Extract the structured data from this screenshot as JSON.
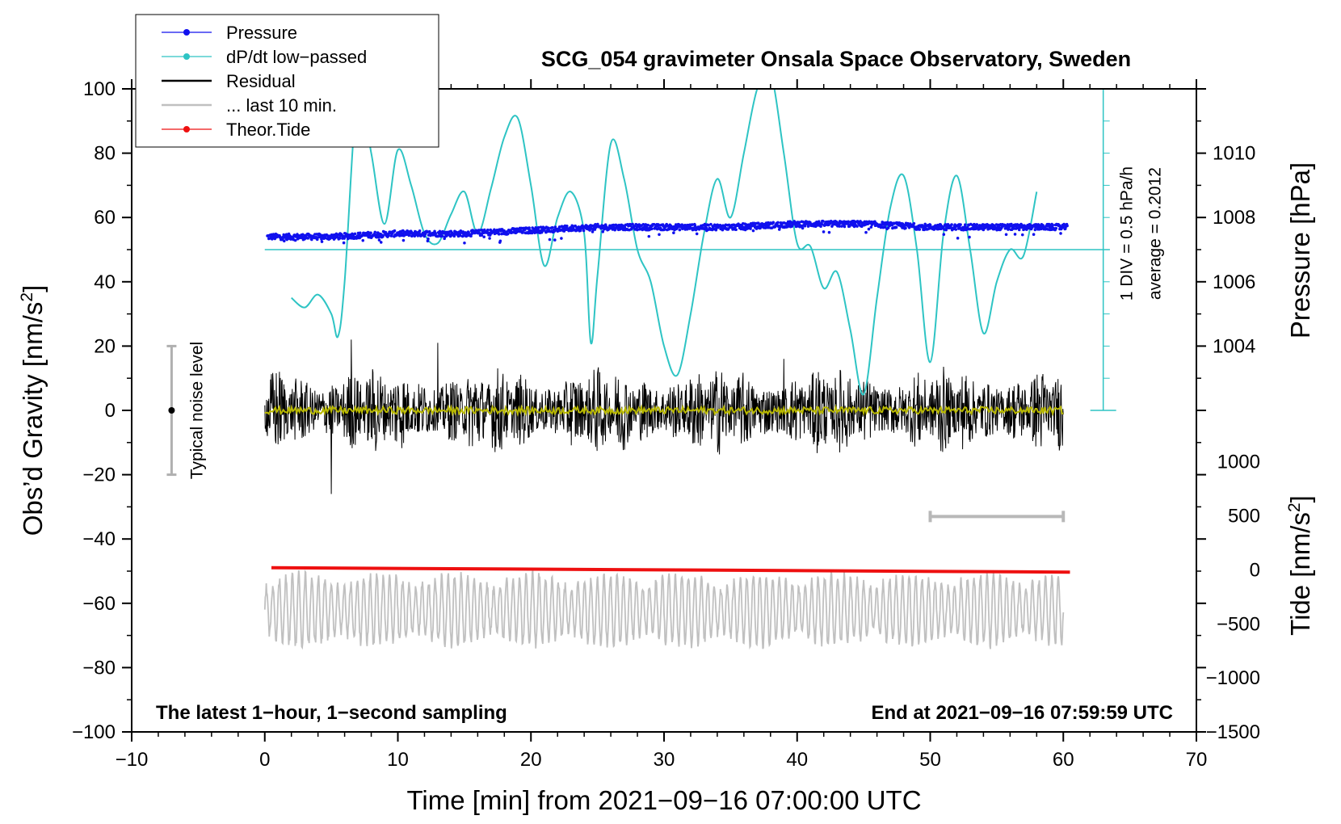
{
  "chart_data": {
    "type": "line",
    "title": "SCG_054 gravimeter Onsala Space Observatory, Sweden",
    "xlabel": "Time [min] from 2021−09−16 07:00:00 UTC",
    "ylabel_left_text": "Obs’d Gravity [nm/s",
    "ylabel_right_top": "Pressure [hPa]",
    "ylabel_right_bottom_text": "Tide [nm/s",
    "unit_exponent": "2",
    "xlim": [
      -10,
      70
    ],
    "ylim": [
      -100,
      100
    ],
    "x_ticks": [
      -10,
      0,
      10,
      20,
      30,
      40,
      50,
      60,
      70
    ],
    "x_tick_labels": [
      "−10",
      "0",
      "10",
      "20",
      "30",
      "40",
      "50",
      "60",
      "70"
    ],
    "y_ticks": [
      -100,
      -80,
      -60,
      -40,
      -20,
      0,
      20,
      40,
      60,
      80,
      100
    ],
    "y_tick_labels": [
      "−100",
      "−80",
      "−60",
      "−40",
      "−20",
      "0",
      "20",
      "40",
      "60",
      "80",
      "100"
    ],
    "pressure_axis": {
      "ticks": [
        1004,
        1006,
        1008,
        1010
      ],
      "tick_labels": [
        "1004",
        "1006",
        "1008",
        "1010"
      ],
      "map_gravity": {
        "value_a": 1004,
        "gravity_a": 20,
        "value_b": 1010,
        "gravity_b": 80
      }
    },
    "tide_axis": {
      "ticks": [
        -1500,
        -1000,
        -500,
        0,
        500,
        1000
      ],
      "tick_labels": [
        "−1500",
        "−1000",
        "−500",
        "0",
        "500",
        "1000"
      ],
      "map_gravity": {
        "value_a": -1500,
        "gravity_a": -100,
        "value_b": 1000,
        "gravity_b": -16
      }
    },
    "legend": {
      "position": "top-left",
      "entries": [
        {
          "name": "Pressure",
          "color": "#1010ee",
          "marker": true
        },
        {
          "name": "dP/dt low−passed",
          "color": "#2ec4c4",
          "marker": true
        },
        {
          "name": "Residual",
          "color": "#000000",
          "marker": false
        },
        {
          "name": "... last 10 min.",
          "color": "#c0c0c0",
          "marker": false
        },
        {
          "name": "Theor.Tide",
          "color": "#ee1010",
          "marker": true
        }
      ]
    },
    "series": [
      {
        "name": "Pressure",
        "color": "#1010ee",
        "units": "hPa",
        "x": [
          0,
          5,
          10,
          15,
          20,
          25,
          30,
          35,
          40,
          45,
          50,
          55,
          60
        ],
        "values": [
          1007.4,
          1007.4,
          1007.5,
          1007.5,
          1007.6,
          1007.7,
          1007.7,
          1007.7,
          1007.8,
          1007.8,
          1007.7,
          1007.7,
          1007.7
        ]
      },
      {
        "name": "dP/dt low−passed",
        "color": "#2ec4c4",
        "units": "gravity-axis",
        "baseline": 50,
        "x": [
          2,
          3,
          4,
          5,
          5.5,
          6,
          7,
          8,
          9,
          10,
          11,
          12,
          13,
          14,
          15,
          16,
          17,
          18,
          19,
          20,
          21,
          22,
          23,
          24,
          24.5,
          25,
          26,
          27,
          28,
          29,
          30,
          31,
          32,
          33,
          34,
          35,
          36,
          37,
          38,
          39,
          40,
          41,
          42,
          43,
          44,
          45,
          46,
          47,
          48,
          49,
          50,
          51,
          52,
          53,
          54,
          55,
          56,
          57,
          58
        ],
        "values": [
          35,
          32,
          36,
          30,
          23,
          40,
          100,
          80,
          58,
          81,
          70,
          55,
          52,
          61,
          68,
          55,
          69,
          85,
          91,
          70,
          45,
          60,
          68,
          55,
          21,
          42,
          83,
          72,
          50,
          40,
          20,
          11,
          30,
          55,
          72,
          60,
          80,
          100,
          105,
          80,
          52,
          51,
          38,
          43,
          25,
          5,
          35,
          63,
          73,
          50,
          15,
          55,
          73,
          50,
          24,
          40,
          50,
          48,
          68
        ]
      },
      {
        "name": "Residual",
        "color": "#000000",
        "units": "nm/s^2",
        "x_range": [
          0,
          60
        ],
        "envelope": 14,
        "extremes": [
          {
            "x": 5,
            "value": -26
          },
          {
            "x": 6.5,
            "value": 22
          },
          {
            "x": 13,
            "value": 21
          },
          {
            "x": 39,
            "value": 16
          }
        ]
      },
      {
        "name": "Residual smoothed",
        "color": "#b8b800",
        "units": "nm/s^2",
        "x_range": [
          0,
          60
        ],
        "values_mean": 0
      },
      {
        "name": "Theor.Tide",
        "color": "#ee1010",
        "units": "nm/s^2 (tide axis)",
        "x": [
          0.5,
          60.5
        ],
        "values": [
          20,
          -21
        ]
      },
      {
        "name": "... last 10 min.",
        "color": "#c0c0c0",
        "units": "gravity-axis",
        "x_range": [
          0,
          60
        ],
        "center": -62,
        "amplitude": 11
      }
    ],
    "annotations": {
      "noise_label": "Typical noise level",
      "noise_bar": {
        "x": -7,
        "low": -20,
        "high": 20
      },
      "div_label": "1 DIV = 0.5 hPa/h",
      "average_label": "average = 0.2012",
      "bottom_left_note": "The latest 1−hour, 1−second sampling",
      "bottom_right_note": "End at 2021−09−16 07:59:59 UTC",
      "scale_bar": {
        "x_start": 50,
        "x_end": 60,
        "y": -33
      }
    }
  }
}
